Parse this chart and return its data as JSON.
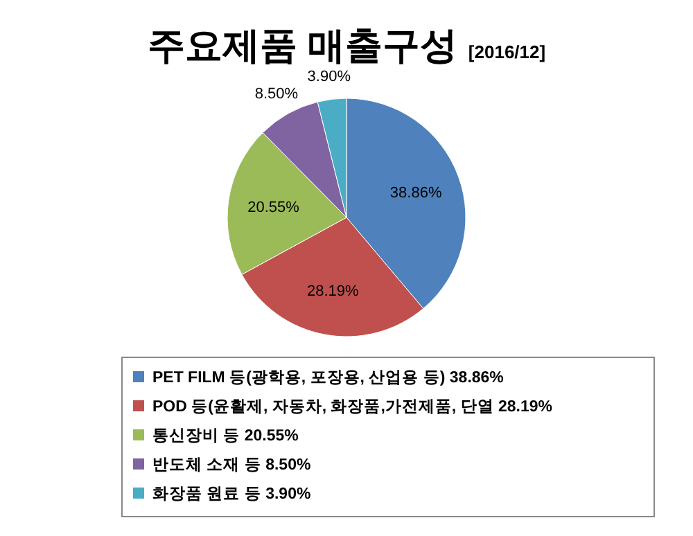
{
  "chart_data": {
    "type": "pie",
    "title": "주요제품 매출구성",
    "subtitle": "[2016/12]",
    "categories": [
      "PET FILM 등(광학용, 포장용, 산업용 등)",
      "POD 등(윤활제, 자동차, 화장품,가전제품, 단열",
      "통신장비 등",
      "반도체 소재 등",
      "화장품 원료 등"
    ],
    "values": [
      38.86,
      28.19,
      20.55,
      8.5,
      3.9
    ],
    "value_labels": [
      "38.86%",
      "28.19%",
      "20.55%",
      "8.50%",
      "3.90%"
    ],
    "colors": [
      "#4f81bd",
      "#c0504d",
      "#9bbb59",
      "#8064a2",
      "#4bacc6"
    ],
    "legend": "bottom"
  }
}
